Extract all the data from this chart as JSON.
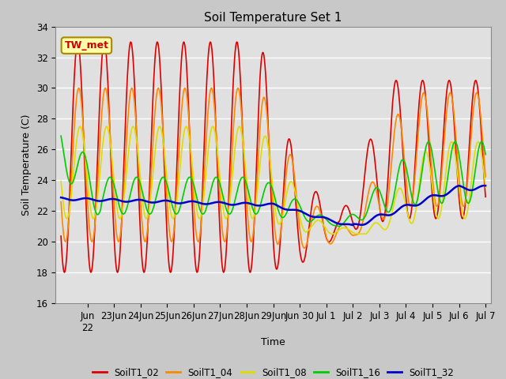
{
  "title": "Soil Temperature Set 1",
  "xlabel": "Time",
  "ylabel": "Soil Temperature (C)",
  "ylim": [
    16,
    34
  ],
  "background_color": "#c8c8c8",
  "plot_bg_color": "#e0e0e0",
  "series": {
    "SoilT1_02": {
      "color": "#dd0000",
      "lw": 1.2
    },
    "SoilT1_04": {
      "color": "#ff8800",
      "lw": 1.2
    },
    "SoilT1_08": {
      "color": "#dddd00",
      "lw": 1.2
    },
    "SoilT1_16": {
      "color": "#00cc00",
      "lw": 1.2
    },
    "SoilT1_32": {
      "color": "#0000cc",
      "lw": 1.8
    }
  },
  "annotation": {
    "text": "TW_met",
    "fontsize": 9,
    "color": "#cc0000",
    "bg": "#ffffaa",
    "border": "#aa8800"
  },
  "tick_labels": [
    "Jun\n22",
    "23Jun",
    "24Jun",
    "25Jun",
    "26Jun",
    "27Jun",
    "28Jun",
    "29Jun",
    "Jun 30",
    "Jul 1",
    "Jul 2",
    "Jul 3",
    "Jul 4",
    "Jul 5",
    "Jul 6",
    "Jul 7"
  ],
  "legend_labels": [
    "SoilT1_02",
    "SoilT1_04",
    "SoilT1_08",
    "SoilT1_16",
    "SoilT1_32"
  ]
}
